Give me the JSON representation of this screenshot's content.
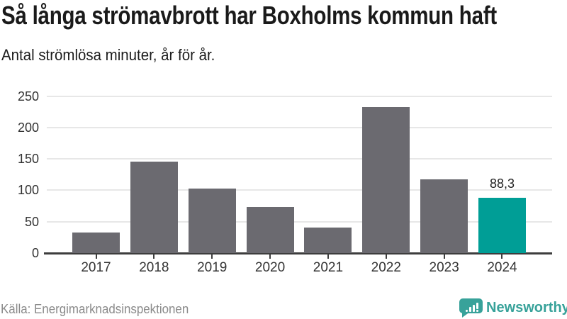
{
  "header": {
    "title": "Så långa strömavbrott har Boxholms kommun haft",
    "subtitle": "Antal strömlösa minuter, år för år."
  },
  "chart_data": {
    "type": "bar",
    "title": "Så långa strömavbrott har Boxholms kommun haft",
    "subtitle": "Antal strömlösa minuter, år för år.",
    "xlabel": "",
    "ylabel": "",
    "categories": [
      "2017",
      "2018",
      "2019",
      "2020",
      "2021",
      "2022",
      "2023",
      "2024"
    ],
    "values": [
      33,
      146,
      103,
      73,
      41,
      233,
      117,
      88.3
    ],
    "value_labels": {
      "2024": "88,3"
    },
    "highlight_category": "2024",
    "yticks": [
      0,
      50,
      100,
      150,
      200,
      250
    ],
    "ylim": [
      0,
      250
    ],
    "grid": true,
    "legend": false,
    "colors": {
      "bar": "#6b6a70",
      "highlight": "#009e96",
      "gridline": "#e7e7e7",
      "axis_line": "#3d3d3d",
      "tick_label": "#333333",
      "value_label": "#222222"
    }
  },
  "footer": {
    "source": "Källa: Energimarknadsinspektionen",
    "brand": "Newsworthy",
    "brand_color": "#38a29a",
    "logo_icon": "bar-chart-speech-bubble"
  }
}
